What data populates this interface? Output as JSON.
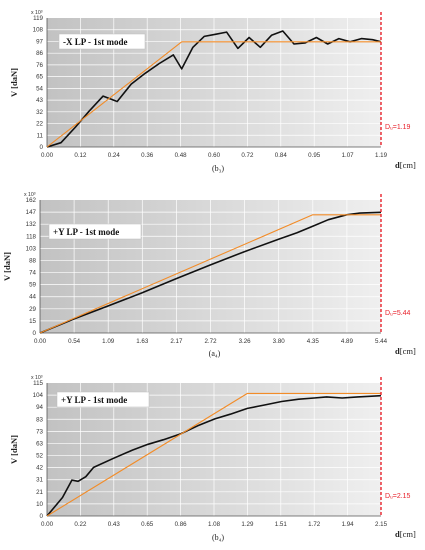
{
  "colors": {
    "capacity": "#111111",
    "bilinear": "#f28c28",
    "ultimate": "#e8212b",
    "grid": "#ffffff",
    "plot_bg_left": "#c4c4c4",
    "plot_bg_right": "#eeeeee"
  },
  "chart_data": [
    {
      "type": "line",
      "legend": "-X LP - 1st mode",
      "subtitle": "(b₃)",
      "ylabel": "V [daN]",
      "yexp": "x 10³",
      "xlabel_bold": "d",
      "xlabel_unit": "[cm]",
      "xticks": [
        "0.00",
        "0.12",
        "0.24",
        "0.36",
        "0.48",
        "0.60",
        "0.72",
        "0.84",
        "0.95",
        "1.07",
        "1.19"
      ],
      "yticks": [
        "0",
        "11",
        "22",
        "32",
        "43",
        "54",
        "65",
        "76",
        "86",
        "97",
        "108",
        "119"
      ],
      "xlim": [
        0,
        1.19
      ],
      "ylim": [
        0,
        119
      ],
      "du_label": "Dᵤ=1.19",
      "du_value": 1.19,
      "series": [
        {
          "role": "capacity",
          "x": [
            0,
            0.05,
            0.1,
            0.15,
            0.2,
            0.25,
            0.3,
            0.35,
            0.4,
            0.45,
            0.48,
            0.52,
            0.56,
            0.6,
            0.64,
            0.68,
            0.72,
            0.76,
            0.8,
            0.84,
            0.88,
            0.92,
            0.96,
            1.0,
            1.04,
            1.08,
            1.12,
            1.16,
            1.19
          ],
          "y": [
            0,
            4,
            18,
            33,
            47,
            42,
            58,
            68,
            77,
            85,
            72,
            92,
            102,
            104,
            106,
            91,
            101,
            92,
            103,
            107,
            95,
            96,
            101,
            95,
            100,
            97,
            100,
            99,
            97
          ]
        },
        {
          "role": "bilinear",
          "x": [
            0,
            0.48,
            1.19
          ],
          "y": [
            0,
            97,
            97
          ]
        }
      ]
    },
    {
      "type": "line",
      "legend": "+Y LP - 1st mode",
      "subtitle": "(a₄)",
      "ylabel": "V [daN]",
      "yexp": "x 10³",
      "xlabel_bold": "d",
      "xlabel_unit": "[cm]",
      "xticks": [
        "0.00",
        "0.54",
        "1.09",
        "1.63",
        "2.17",
        "2.72",
        "3.26",
        "3.80",
        "4.35",
        "4.89",
        "5.44"
      ],
      "yticks": [
        "0",
        "15",
        "29",
        "44",
        "59",
        "74",
        "88",
        "103",
        "118",
        "132",
        "147",
        "162"
      ],
      "xlim": [
        0,
        5.44
      ],
      "ylim": [
        0,
        162
      ],
      "du_label": "Dᵤ=5.44",
      "du_value": 5.44,
      "series": [
        {
          "role": "capacity",
          "x": [
            0,
            0.54,
            1.09,
            1.63,
            2.17,
            2.72,
            3.26,
            3.8,
            4.1,
            4.35,
            4.6,
            4.89,
            5.1,
            5.44
          ],
          "y": [
            0,
            17,
            33,
            49,
            66,
            83,
            99,
            114,
            122,
            130,
            138,
            144,
            146,
            147
          ]
        },
        {
          "role": "bilinear",
          "x": [
            0,
            4.35,
            5.44
          ],
          "y": [
            0,
            144,
            144
          ]
        }
      ]
    },
    {
      "type": "line",
      "legend": "+Y LP - 1st mode",
      "subtitle": "(b₄)",
      "ylabel": "V [daN]",
      "yexp": "x 10³",
      "xlabel_bold": "d",
      "xlabel_unit": "[cm]",
      "xticks": [
        "0.00",
        "0.22",
        "0.43",
        "0.65",
        "0.86",
        "1.08",
        "1.29",
        "1.51",
        "1.72",
        "1.94",
        "2.15"
      ],
      "yticks": [
        "0",
        "10",
        "21",
        "31",
        "42",
        "52",
        "63",
        "73",
        "83",
        "94",
        "104",
        "115"
      ],
      "xlim": [
        0,
        2.15
      ],
      "ylim": [
        0,
        115
      ],
      "du_label": "Dᵤ=2.15",
      "du_value": 2.15,
      "series": [
        {
          "role": "capacity",
          "x": [
            0,
            0.1,
            0.16,
            0.2,
            0.25,
            0.3,
            0.43,
            0.55,
            0.65,
            0.75,
            0.86,
            0.97,
            1.08,
            1.18,
            1.29,
            1.4,
            1.51,
            1.62,
            1.72,
            1.8,
            1.9,
            2.0,
            2.15
          ],
          "y": [
            0,
            16,
            31,
            30,
            34,
            42,
            50,
            57,
            62,
            66,
            71,
            78,
            84,
            88,
            93,
            96,
            99,
            101,
            102,
            103,
            102,
            103,
            104
          ]
        },
        {
          "role": "bilinear",
          "x": [
            0,
            1.29,
            2.15
          ],
          "y": [
            0,
            106,
            106
          ]
        }
      ]
    }
  ]
}
